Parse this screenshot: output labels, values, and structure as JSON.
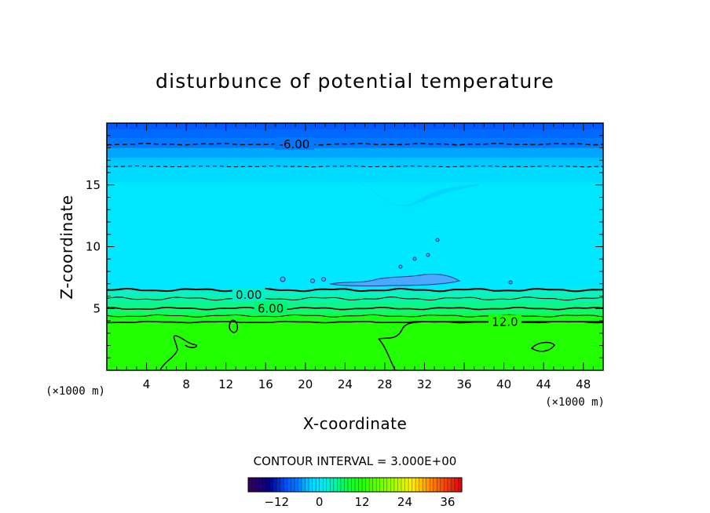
{
  "chart_data": {
    "type": "heatmap",
    "title": "disturbunce of potential temperature",
    "xlabel": "X-coordinate",
    "ylabel": "Z-coordinate",
    "x_unit": "(×1000 m)",
    "y_unit": "(×1000 m)",
    "xlim": [
      0,
      50
    ],
    "ylim": [
      0,
      20
    ],
    "x_ticks": [
      4,
      8,
      12,
      16,
      20,
      24,
      28,
      32,
      36,
      40,
      44,
      48
    ],
    "y_ticks": [
      5,
      10,
      15
    ],
    "contour_interval_text": "CONTOUR INTERVAL = 3.000E+00",
    "contour_labels": [
      {
        "text": "-6.00",
        "x": 18.9,
        "z": 18.3
      },
      {
        "text": "0.00",
        "x": 14.3,
        "z": 6.1
      },
      {
        "text": "6.00",
        "x": 16.5,
        "z": 5.0
      },
      {
        "text": "12.0",
        "x": 40.1,
        "z": 3.9
      }
    ],
    "colorbar": {
      "range": [
        -20,
        40
      ],
      "tick_values": [
        -12,
        0,
        12,
        24,
        36
      ],
      "tick_labels": [
        "−12",
        "0",
        "12",
        "24",
        "36"
      ]
    },
    "field_bands": [
      {
        "from_z": 19.5,
        "to_z": 20.0,
        "value": -9
      },
      {
        "from_z": 18.8,
        "to_z": 19.5,
        "value": -7.5
      },
      {
        "from_z": 18.0,
        "to_z": 18.8,
        "value": -6
      },
      {
        "from_z": 17.2,
        "to_z": 18.0,
        "value": -4.5
      },
      {
        "from_z": 16.4,
        "to_z": 17.2,
        "value": -3
      },
      {
        "from_z": 15.2,
        "to_z": 16.4,
        "value": -1.5
      },
      {
        "from_z": 6.5,
        "to_z": 15.2,
        "value": 0
      },
      {
        "from_z": 6.0,
        "to_z": 6.5,
        "value": 3
      },
      {
        "from_z": 5.5,
        "to_z": 6.0,
        "value": 4.5
      },
      {
        "from_z": 5.0,
        "to_z": 5.5,
        "value": 6
      },
      {
        "from_z": 4.4,
        "to_z": 5.0,
        "value": 7.5
      },
      {
        "from_z": 3.9,
        "to_z": 4.4,
        "value": 10.5
      },
      {
        "from_z": 0.0,
        "to_z": 3.9,
        "value": 12
      }
    ],
    "colors": {
      "deep_blue": "#0066ff",
      "cyan": "#00e5ff",
      "green": "#22ff00"
    }
  }
}
